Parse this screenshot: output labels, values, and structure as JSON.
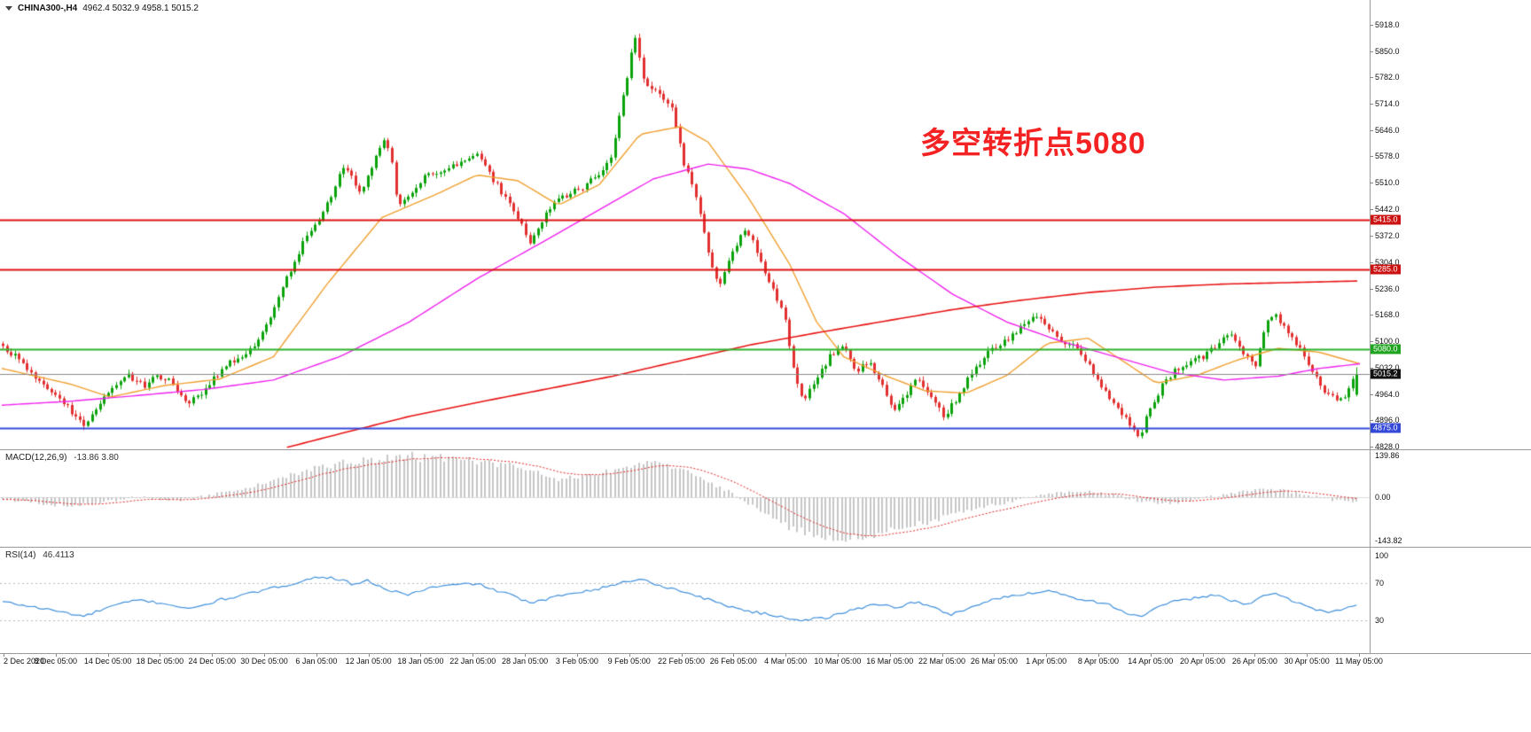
{
  "app": {
    "symbol_period": "CHINA300-,H4",
    "ohlc_text": "4962.4 5032.9 4958.1 5015.2"
  },
  "annotation": {
    "text": "多空转折点5080",
    "color": "#f42222"
  },
  "indicators": {
    "macd": {
      "label": "MACD(12,26,9)",
      "values": "-13.86 3.80"
    },
    "rsi": {
      "label": "RSI(14)",
      "value": "46.4113"
    }
  },
  "price_axis": {
    "ticks": [
      "5918.0",
      "5850.0",
      "5782.0",
      "5714.0",
      "5646.0",
      "5578.0",
      "5510.0",
      "5442.0",
      "5372.0",
      "5304.0",
      "5236.0",
      "5168.0",
      "5100.0",
      "5032.0",
      "4964.0",
      "4896.0",
      "4828.0"
    ],
    "price_top": 5982,
    "price_bottom": 4821
  },
  "levels": [
    {
      "label": "5415.0",
      "price": 5415.0,
      "line_color": "#dd1111",
      "badge_color": "#cc1111",
      "width": 2,
      "role": "resistance-line"
    },
    {
      "label": "5285.0",
      "price": 5285.0,
      "line_color": "#dd1111",
      "badge_color": "#cc1111",
      "width": 2,
      "role": "resistance-line"
    },
    {
      "label": "5080.0",
      "price": 5080.0,
      "line_color": "#2db22d",
      "badge_color": "#1ea41e",
      "width": 2,
      "role": "pivot-line"
    },
    {
      "label": "4875.0",
      "price": 4875.0,
      "line_color": "#3448d8",
      "badge_color": "#3448d8",
      "width": 2,
      "role": "support-line"
    },
    {
      "label": "5015.2",
      "price": 5015.2,
      "line_color": "#8a8a8a",
      "badge_color": "#111111",
      "width": 1,
      "role": "current-price"
    }
  ],
  "time_axis": {
    "labels": [
      "2 Dec 2020",
      "8 Dec 05:00",
      "14 Dec 05:00",
      "18 Dec 05:00",
      "24 Dec 05:00",
      "30 Dec 05:00",
      "6 Jan 05:00",
      "12 Jan 05:00",
      "18 Jan 05:00",
      "22 Jan 05:00",
      "28 Jan 05:00",
      "3 Feb 05:00",
      "9 Feb 05:00",
      "22 Feb 05:00",
      "26 Feb 05:00",
      "4 Mar 05:00",
      "10 Mar 05:00",
      "16 Mar 05:00",
      "22 Mar 05:00",
      "26 Mar 05:00",
      "1 Apr 05:00",
      "8 Apr 05:00",
      "14 Apr 05:00",
      "20 Apr 05:00",
      "26 Apr 05:00",
      "30 Apr 05:00",
      "11 May 05:00"
    ]
  },
  "chart_data": [
    {
      "type": "candlestick",
      "title": "CHINA300-,H4",
      "timeframe": "H4",
      "num_candles": 335,
      "ylim": [
        4821,
        5982
      ],
      "up_color": "#0aa20a",
      "down_color": "#e22f2f",
      "last_candle": {
        "open": 4962.4,
        "high": 5032.9,
        "low": 4958.1,
        "close": 5015.2
      },
      "price_path": [
        [
          0,
          5085
        ],
        [
          0.01,
          5060
        ],
        [
          0.022,
          5010
        ],
        [
          0.035,
          4975
        ],
        [
          0.048,
          4930
        ],
        [
          0.06,
          4878
        ],
        [
          0.068,
          4922
        ],
        [
          0.08,
          4980
        ],
        [
          0.092,
          5012
        ],
        [
          0.105,
          4985
        ],
        [
          0.115,
          5012
        ],
        [
          0.125,
          4995
        ],
        [
          0.135,
          4940
        ],
        [
          0.145,
          4962
        ],
        [
          0.155,
          5002
        ],
        [
          0.165,
          5040
        ],
        [
          0.175,
          5056
        ],
        [
          0.185,
          5082
        ],
        [
          0.195,
          5140
        ],
        [
          0.205,
          5230
        ],
        [
          0.215,
          5302
        ],
        [
          0.225,
          5378
        ],
        [
          0.235,
          5420
        ],
        [
          0.245,
          5498
        ],
        [
          0.252,
          5558
        ],
        [
          0.258,
          5518
        ],
        [
          0.265,
          5482
        ],
        [
          0.272,
          5548
        ],
        [
          0.28,
          5618
        ],
        [
          0.286,
          5598
        ],
        [
          0.292,
          5442
        ],
        [
          0.3,
          5480
        ],
        [
          0.31,
          5520
        ],
        [
          0.325,
          5545
        ],
        [
          0.34,
          5560
        ],
        [
          0.35,
          5582
        ],
        [
          0.358,
          5540
        ],
        [
          0.37,
          5478
        ],
        [
          0.38,
          5420
        ],
        [
          0.39,
          5352
        ],
        [
          0.4,
          5420
        ],
        [
          0.41,
          5468
        ],
        [
          0.43,
          5502
        ],
        [
          0.448,
          5560
        ],
        [
          0.461,
          5780
        ],
        [
          0.466,
          5898
        ],
        [
          0.474,
          5762
        ],
        [
          0.484,
          5742
        ],
        [
          0.494,
          5700
        ],
        [
          0.503,
          5560
        ],
        [
          0.513,
          5462
        ],
        [
          0.523,
          5302
        ],
        [
          0.529,
          5242
        ],
        [
          0.539,
          5330
        ],
        [
          0.549,
          5395
        ],
        [
          0.558,
          5320
        ],
        [
          0.568,
          5242
        ],
        [
          0.578,
          5160
        ],
        [
          0.584,
          5022
        ],
        [
          0.591,
          4942
        ],
        [
          0.601,
          5000
        ],
        [
          0.61,
          5058
        ],
        [
          0.62,
          5090
        ],
        [
          0.63,
          5022
        ],
        [
          0.64,
          5050
        ],
        [
          0.649,
          4990
        ],
        [
          0.657,
          4922
        ],
        [
          0.666,
          4960
        ],
        [
          0.675,
          5000
        ],
        [
          0.685,
          4952
        ],
        [
          0.695,
          4906
        ],
        [
          0.705,
          4955
        ],
        [
          0.714,
          5010
        ],
        [
          0.724,
          5058
        ],
        [
          0.734,
          5088
        ],
        [
          0.743,
          5108
        ],
        [
          0.753,
          5140
        ],
        [
          0.763,
          5172
        ],
        [
          0.773,
          5130
        ],
        [
          0.782,
          5100
        ],
        [
          0.792,
          5086
        ],
        [
          0.802,
          5040
        ],
        [
          0.812,
          4975
        ],
        [
          0.821,
          4940
        ],
        [
          0.831,
          4890
        ],
        [
          0.839,
          4845
        ],
        [
          0.847,
          4930
        ],
        [
          0.857,
          4988
        ],
        [
          0.867,
          5030
        ],
        [
          0.877,
          5045
        ],
        [
          0.886,
          5060
        ],
        [
          0.896,
          5090
        ],
        [
          0.906,
          5130
        ],
        [
          0.916,
          5070
        ],
        [
          0.925,
          5040
        ],
        [
          0.933,
          5150
        ],
        [
          0.94,
          5175
        ],
        [
          0.948,
          5120
        ],
        [
          0.958,
          5080
        ],
        [
          0.968,
          5020
        ],
        [
          0.975,
          4975
        ],
        [
          0.984,
          4950
        ],
        [
          0.992,
          4962
        ],
        [
          1,
          5015.2
        ]
      ],
      "moving_averages": [
        {
          "name": "ma-fast-orange",
          "color": "#f0a030",
          "width": 1.4,
          "path": [
            [
              0,
              5030
            ],
            [
              0.05,
              4990
            ],
            [
              0.08,
              4956
            ],
            [
              0.12,
              4986
            ],
            [
              0.16,
              5002
            ],
            [
              0.2,
              5060
            ],
            [
              0.24,
              5250
            ],
            [
              0.28,
              5420
            ],
            [
              0.32,
              5480
            ],
            [
              0.35,
              5530
            ],
            [
              0.38,
              5515
            ],
            [
              0.41,
              5452
            ],
            [
              0.44,
              5505
            ],
            [
              0.47,
              5635
            ],
            [
              0.5,
              5655
            ],
            [
              0.52,
              5615
            ],
            [
              0.55,
              5470
            ],
            [
              0.58,
              5300
            ],
            [
              0.6,
              5150
            ],
            [
              0.62,
              5060
            ],
            [
              0.65,
              5012
            ],
            [
              0.68,
              4972
            ],
            [
              0.71,
              4966
            ],
            [
              0.74,
              5012
            ],
            [
              0.77,
              5095
            ],
            [
              0.8,
              5108
            ],
            [
              0.82,
              5062
            ],
            [
              0.85,
              4992
            ],
            [
              0.88,
              5012
            ],
            [
              0.91,
              5052
            ],
            [
              0.94,
              5082
            ],
            [
              0.97,
              5072
            ],
            [
              1,
              5042
            ]
          ]
        },
        {
          "name": "ma-medium-magenta",
          "color": "#ee22ee",
          "width": 1.4,
          "path": [
            [
              0,
              4935
            ],
            [
              0.05,
              4945
            ],
            [
              0.1,
              4960
            ],
            [
              0.15,
              4976
            ],
            [
              0.2,
              5000
            ],
            [
              0.25,
              5062
            ],
            [
              0.3,
              5150
            ],
            [
              0.35,
              5262
            ],
            [
              0.4,
              5360
            ],
            [
              0.44,
              5440
            ],
            [
              0.48,
              5520
            ],
            [
              0.52,
              5558
            ],
            [
              0.55,
              5545
            ],
            [
              0.58,
              5508
            ],
            [
              0.62,
              5430
            ],
            [
              0.66,
              5320
            ],
            [
              0.7,
              5222
            ],
            [
              0.74,
              5150
            ],
            [
              0.78,
              5100
            ],
            [
              0.82,
              5060
            ],
            [
              0.86,
              5020
            ],
            [
              0.9,
              5000
            ],
            [
              0.94,
              5010
            ],
            [
              0.97,
              5030
            ],
            [
              1,
              5042
            ]
          ]
        },
        {
          "name": "ma-slow-red",
          "color": "#e81414",
          "width": 1.6,
          "path": [
            [
              0.21,
              4826
            ],
            [
              0.25,
              4862
            ],
            [
              0.3,
              4906
            ],
            [
              0.35,
              4942
            ],
            [
              0.4,
              4976
            ],
            [
              0.45,
              5010
            ],
            [
              0.5,
              5050
            ],
            [
              0.55,
              5090
            ],
            [
              0.6,
              5122
            ],
            [
              0.65,
              5152
            ],
            [
              0.7,
              5182
            ],
            [
              0.75,
              5206
            ],
            [
              0.8,
              5226
            ],
            [
              0.85,
              5240
            ],
            [
              0.9,
              5248
            ],
            [
              0.95,
              5252
            ],
            [
              1,
              5256
            ]
          ]
        }
      ]
    },
    {
      "type": "bar",
      "name": "MACD",
      "label": "MACD(12,26,9)",
      "current_values": [
        -13.86,
        3.8
      ],
      "ticks": [
        "139.86",
        "0.00",
        "-143.82"
      ],
      "ylim": [
        -165,
        160
      ],
      "histogram_color": "#c6c6c6",
      "signal_color": "#e02020",
      "path": [
        [
          0,
          -8
        ],
        [
          0.02,
          -18
        ],
        [
          0.05,
          -30
        ],
        [
          0.08,
          -12
        ],
        [
          0.1,
          2
        ],
        [
          0.13,
          -12
        ],
        [
          0.155,
          8
        ],
        [
          0.18,
          30
        ],
        [
          0.21,
          70
        ],
        [
          0.24,
          105
        ],
        [
          0.27,
          125
        ],
        [
          0.3,
          138
        ],
        [
          0.33,
          132
        ],
        [
          0.36,
          118
        ],
        [
          0.385,
          95
        ],
        [
          0.41,
          60
        ],
        [
          0.435,
          75
        ],
        [
          0.46,
          105
        ],
        [
          0.48,
          118
        ],
        [
          0.5,
          95
        ],
        [
          0.52,
          55
        ],
        [
          0.54,
          10
        ],
        [
          0.56,
          -45
        ],
        [
          0.58,
          -95
        ],
        [
          0.6,
          -130
        ],
        [
          0.62,
          -143
        ],
        [
          0.64,
          -132
        ],
        [
          0.66,
          -110
        ],
        [
          0.68,
          -85
        ],
        [
          0.7,
          -60
        ],
        [
          0.72,
          -38
        ],
        [
          0.74,
          -18
        ],
        [
          0.76,
          0
        ],
        [
          0.78,
          14
        ],
        [
          0.8,
          22
        ],
        [
          0.82,
          8
        ],
        [
          0.84,
          -12
        ],
        [
          0.86,
          -22
        ],
        [
          0.88,
          -10
        ],
        [
          0.9,
          8
        ],
        [
          0.92,
          22
        ],
        [
          0.94,
          28
        ],
        [
          0.96,
          12
        ],
        [
          0.98,
          -8
        ],
        [
          1,
          -13.86
        ]
      ]
    },
    {
      "type": "line",
      "name": "RSI",
      "label": "RSI(14)",
      "current_value": 46.4113,
      "ticks": [
        "100",
        "70",
        "30"
      ],
      "levels": [
        70,
        30
      ],
      "ylim": [
        -6,
        110
      ],
      "line_color": "#4090dc",
      "path": [
        [
          0,
          50
        ],
        [
          0.02,
          45
        ],
        [
          0.04,
          40
        ],
        [
          0.06,
          34
        ],
        [
          0.08,
          45
        ],
        [
          0.1,
          52
        ],
        [
          0.12,
          48
        ],
        [
          0.14,
          42
        ],
        [
          0.16,
          52
        ],
        [
          0.18,
          58
        ],
        [
          0.2,
          65
        ],
        [
          0.22,
          72
        ],
        [
          0.235,
          78
        ],
        [
          0.25,
          74
        ],
        [
          0.26,
          68
        ],
        [
          0.27,
          73
        ],
        [
          0.285,
          62
        ],
        [
          0.3,
          58
        ],
        [
          0.315,
          65
        ],
        [
          0.33,
          68
        ],
        [
          0.35,
          70
        ],
        [
          0.365,
          62
        ],
        [
          0.38,
          55
        ],
        [
          0.39,
          48
        ],
        [
          0.4,
          52
        ],
        [
          0.42,
          60
        ],
        [
          0.44,
          64
        ],
        [
          0.46,
          72
        ],
        [
          0.47,
          75
        ],
        [
          0.49,
          66
        ],
        [
          0.51,
          58
        ],
        [
          0.53,
          48
        ],
        [
          0.55,
          40
        ],
        [
          0.57,
          35
        ],
        [
          0.59,
          30
        ],
        [
          0.61,
          33
        ],
        [
          0.63,
          42
        ],
        [
          0.645,
          48
        ],
        [
          0.66,
          44
        ],
        [
          0.675,
          50
        ],
        [
          0.69,
          42
        ],
        [
          0.7,
          36
        ],
        [
          0.715,
          44
        ],
        [
          0.73,
          52
        ],
        [
          0.745,
          56
        ],
        [
          0.76,
          60
        ],
        [
          0.775,
          62
        ],
        [
          0.79,
          55
        ],
        [
          0.8,
          52
        ],
        [
          0.815,
          48
        ],
        [
          0.83,
          38
        ],
        [
          0.84,
          33
        ],
        [
          0.85,
          42
        ],
        [
          0.865,
          50
        ],
        [
          0.88,
          54
        ],
        [
          0.895,
          58
        ],
        [
          0.91,
          50
        ],
        [
          0.92,
          46
        ],
        [
          0.93,
          56
        ],
        [
          0.94,
          60
        ],
        [
          0.95,
          52
        ],
        [
          0.96,
          48
        ],
        [
          0.97,
          42
        ],
        [
          0.98,
          38
        ],
        [
          0.99,
          42
        ],
        [
          1,
          46.4113
        ]
      ]
    }
  ]
}
